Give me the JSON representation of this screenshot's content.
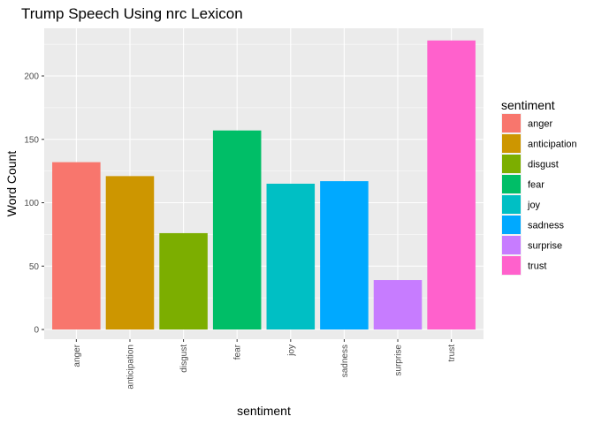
{
  "chart_data": {
    "type": "bar",
    "title": "Trump Speech Using nrc Lexicon",
    "xlabel": "sentiment",
    "ylabel": "Word Count",
    "categories": [
      "anger",
      "anticipation",
      "disgust",
      "fear",
      "joy",
      "sadness",
      "surprise",
      "trust"
    ],
    "values": [
      132,
      121,
      76,
      157,
      115,
      117,
      39,
      228
    ],
    "colors": [
      "#F8766D",
      "#CD9600",
      "#7CAE00",
      "#00BE67",
      "#00BFC4",
      "#00A9FF",
      "#C77CFF",
      "#FF61CC"
    ],
    "yticks": [
      0,
      50,
      100,
      150,
      200
    ],
    "ylim": [
      0,
      240
    ],
    "grid": true,
    "panel_background": "#EBEBEB",
    "legend": {
      "title": "sentiment",
      "placement": "right",
      "items": [
        "anger",
        "anticipation",
        "disgust",
        "fear",
        "joy",
        "sadness",
        "surprise",
        "trust"
      ]
    }
  }
}
